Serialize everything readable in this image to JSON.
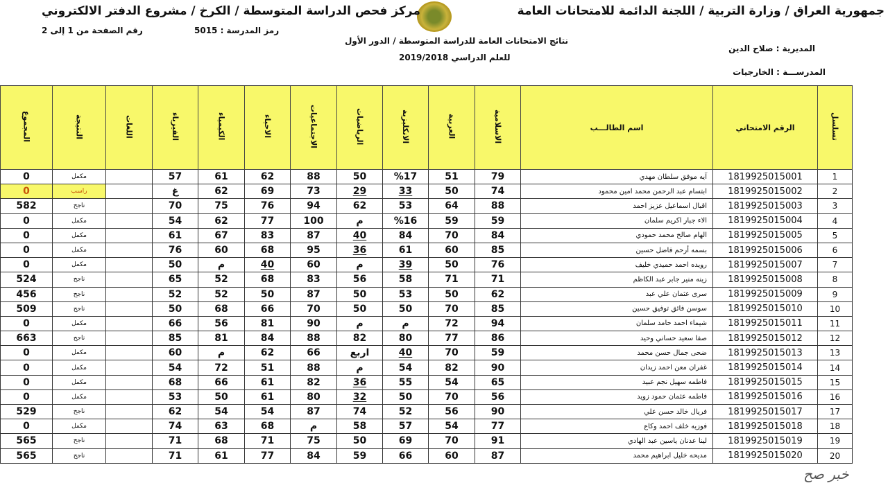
{
  "header": {
    "title_right": "جمهورية العراق / وزارة التربية / اللجنة الدائمة للامتحانات العامة",
    "title_left": "مركز فحص الدراسة المتوسطة / الكرخ / مشروع الدفتر الالكتروني",
    "school_code": "رمز المدرسة :  5015",
    "page_number": "رقم الصفحة من  1  إلى 2",
    "results_title": "نتائج الامتحانات العامة للدراسة المتوسطة / الدور الأول",
    "academic_year": "للعلم الدراسي    2019/2018",
    "directorate": "المديرية :   صلاح الدين",
    "school": "المدرســـة :  الخارجيات"
  },
  "table": {
    "columns": [
      "المجموع",
      "النتيجة",
      "اللغات",
      "الفيزياء",
      "الكيمياء",
      "الاحياء",
      "الاجتماعيات",
      "الرياضيات",
      "الانكليزية",
      "العربية",
      "الاسلامية",
      "اسم الطالـــب",
      "الرقم الامتحاني",
      "تسلسل"
    ],
    "rows": [
      {
        "seq": "1",
        "id": "1819925015001",
        "name": "آيه موفق سلطان مهدي",
        "islamic": "79",
        "arabic": "51",
        "english": "%17",
        "math": "50",
        "social": "88",
        "bio": "62",
        "chem": "61",
        "phys": "57",
        "lang": "",
        "result": "مكمل",
        "total": "0"
      },
      {
        "seq": "2",
        "id": "1819925015002",
        "name": "ابتسام عبد الرحمن محمد امين محمود",
        "islamic": "74",
        "arabic": "50",
        "english": "33",
        "math": "29",
        "social": "73",
        "bio": "69",
        "chem": "62",
        "phys": "غ",
        "lang": "",
        "result": "راسب",
        "total": "0"
      },
      {
        "seq": "3",
        "id": "1819925015003",
        "name": "اقبال اسماعيل عزيز احمد",
        "islamic": "88",
        "arabic": "64",
        "english": "53",
        "math": "62",
        "social": "94",
        "bio": "76",
        "chem": "75",
        "phys": "70",
        "lang": "",
        "result": "ناجح",
        "total": "582"
      },
      {
        "seq": "4",
        "id": "1819925015004",
        "name": "الاء جبار اكريم سلمان",
        "islamic": "59",
        "arabic": "59",
        "english": "%16",
        "math": "م",
        "social": "100",
        "bio": "77",
        "chem": "62",
        "phys": "54",
        "lang": "",
        "result": "مكمل",
        "total": "0"
      },
      {
        "seq": "5",
        "id": "1819925015005",
        "name": "الهام صالح محمد حمودي",
        "islamic": "84",
        "arabic": "70",
        "english": "84",
        "math": "40",
        "social": "87",
        "bio": "83",
        "chem": "67",
        "phys": "61",
        "lang": "",
        "result": "مكمل",
        "total": "0"
      },
      {
        "seq": "6",
        "id": "1819925015006",
        "name": "بسمه أرحم فاضل حسين",
        "islamic": "85",
        "arabic": "60",
        "english": "61",
        "math": "36",
        "social": "95",
        "bio": "68",
        "chem": "60",
        "phys": "76",
        "lang": "",
        "result": "مكمل",
        "total": "0"
      },
      {
        "seq": "7",
        "id": "1819925015007",
        "name": "رويده احمد حميدي خليف",
        "islamic": "76",
        "arabic": "50",
        "english": "39",
        "math": "م",
        "social": "60",
        "bio": "40",
        "chem": "م",
        "phys": "50",
        "lang": "",
        "result": "مكمل",
        "total": "0"
      },
      {
        "seq": "8",
        "id": "1819925015008",
        "name": "زينه منير جابر عبد الكاظم",
        "islamic": "71",
        "arabic": "71",
        "english": "58",
        "math": "56",
        "social": "83",
        "bio": "68",
        "chem": "52",
        "phys": "65",
        "lang": "",
        "result": "ناجح",
        "total": "524"
      },
      {
        "seq": "9",
        "id": "1819925015009",
        "name": "سرى عثمان علي عبد",
        "islamic": "62",
        "arabic": "50",
        "english": "53",
        "math": "50",
        "social": "87",
        "bio": "50",
        "chem": "52",
        "phys": "52",
        "lang": "",
        "result": "ناجح",
        "total": "456"
      },
      {
        "seq": "10",
        "id": "1819925015010",
        "name": "سوسن فائق توفيق حسين",
        "islamic": "85",
        "arabic": "70",
        "english": "50",
        "math": "50",
        "social": "70",
        "bio": "66",
        "chem": "68",
        "phys": "50",
        "lang": "",
        "result": "ناجح",
        "total": "509"
      },
      {
        "seq": "11",
        "id": "1819925015011",
        "name": "شيماء احمد حامد سلمان",
        "islamic": "94",
        "arabic": "72",
        "english": "م",
        "math": "م",
        "social": "90",
        "bio": "81",
        "chem": "56",
        "phys": "66",
        "lang": "",
        "result": "مكمل",
        "total": "0"
      },
      {
        "seq": "12",
        "id": "1819925015012",
        "name": "صفا سعيد حساني وحيد",
        "islamic": "86",
        "arabic": "77",
        "english": "80",
        "math": "82",
        "social": "88",
        "bio": "84",
        "chem": "81",
        "phys": "85",
        "lang": "",
        "result": "ناجح",
        "total": "663"
      },
      {
        "seq": "13",
        "id": "1819925015013",
        "name": "ضحى جمال حسن محمد",
        "islamic": "59",
        "arabic": "70",
        "english": "40",
        "math": "اربع",
        "social": "66",
        "bio": "62",
        "chem": "م",
        "phys": "60",
        "lang": "",
        "result": "مكمل",
        "total": "0"
      },
      {
        "seq": "14",
        "id": "1819925015014",
        "name": "غفران معن احمد زيدان",
        "islamic": "90",
        "arabic": "82",
        "english": "54",
        "math": "م",
        "social": "88",
        "bio": "51",
        "chem": "72",
        "phys": "54",
        "lang": "",
        "result": "مكمل",
        "total": "0"
      },
      {
        "seq": "15",
        "id": "1819925015015",
        "name": "فاطمه سهيل نجم عبيد",
        "islamic": "65",
        "arabic": "54",
        "english": "55",
        "math": "36",
        "social": "82",
        "bio": "61",
        "chem": "66",
        "phys": "68",
        "lang": "",
        "result": "مكمل",
        "total": "0"
      },
      {
        "seq": "16",
        "id": "1819925015016",
        "name": "فاطمه عثمان حمود زويد",
        "islamic": "56",
        "arabic": "70",
        "english": "50",
        "math": "32",
        "social": "80",
        "bio": "61",
        "chem": "50",
        "phys": "53",
        "lang": "",
        "result": "مكمل",
        "total": "0"
      },
      {
        "seq": "17",
        "id": "1819925015017",
        "name": "فريال خالد حسن علي",
        "islamic": "90",
        "arabic": "56",
        "english": "52",
        "math": "74",
        "social": "87",
        "bio": "54",
        "chem": "54",
        "phys": "62",
        "lang": "",
        "result": "ناجح",
        "total": "529"
      },
      {
        "seq": "18",
        "id": "1819925015018",
        "name": "فوزيه خلف احمد وكاع",
        "islamic": "77",
        "arabic": "54",
        "english": "57",
        "math": "58",
        "social": "م",
        "bio": "68",
        "chem": "63",
        "phys": "74",
        "lang": "",
        "result": "مكمل",
        "total": "0"
      },
      {
        "seq": "19",
        "id": "1819925015019",
        "name": "لينا عدنان ياسين عبد الهادي",
        "islamic": "91",
        "arabic": "70",
        "english": "69",
        "math": "50",
        "social": "75",
        "bio": "71",
        "chem": "68",
        "phys": "71",
        "lang": "",
        "result": "ناجح",
        "total": "565"
      },
      {
        "seq": "20",
        "id": "1819925015020",
        "name": "مديحه خليل ابراهيم محمد",
        "islamic": "87",
        "arabic": "60",
        "english": "66",
        "math": "59",
        "social": "84",
        "bio": "77",
        "chem": "61",
        "phys": "71",
        "lang": "",
        "result": "ناجح",
        "total": "565"
      }
    ]
  },
  "watermark": "خبر صح",
  "colors": {
    "header_bg": "#f8f86a",
    "fail_text": "#c8560a"
  }
}
